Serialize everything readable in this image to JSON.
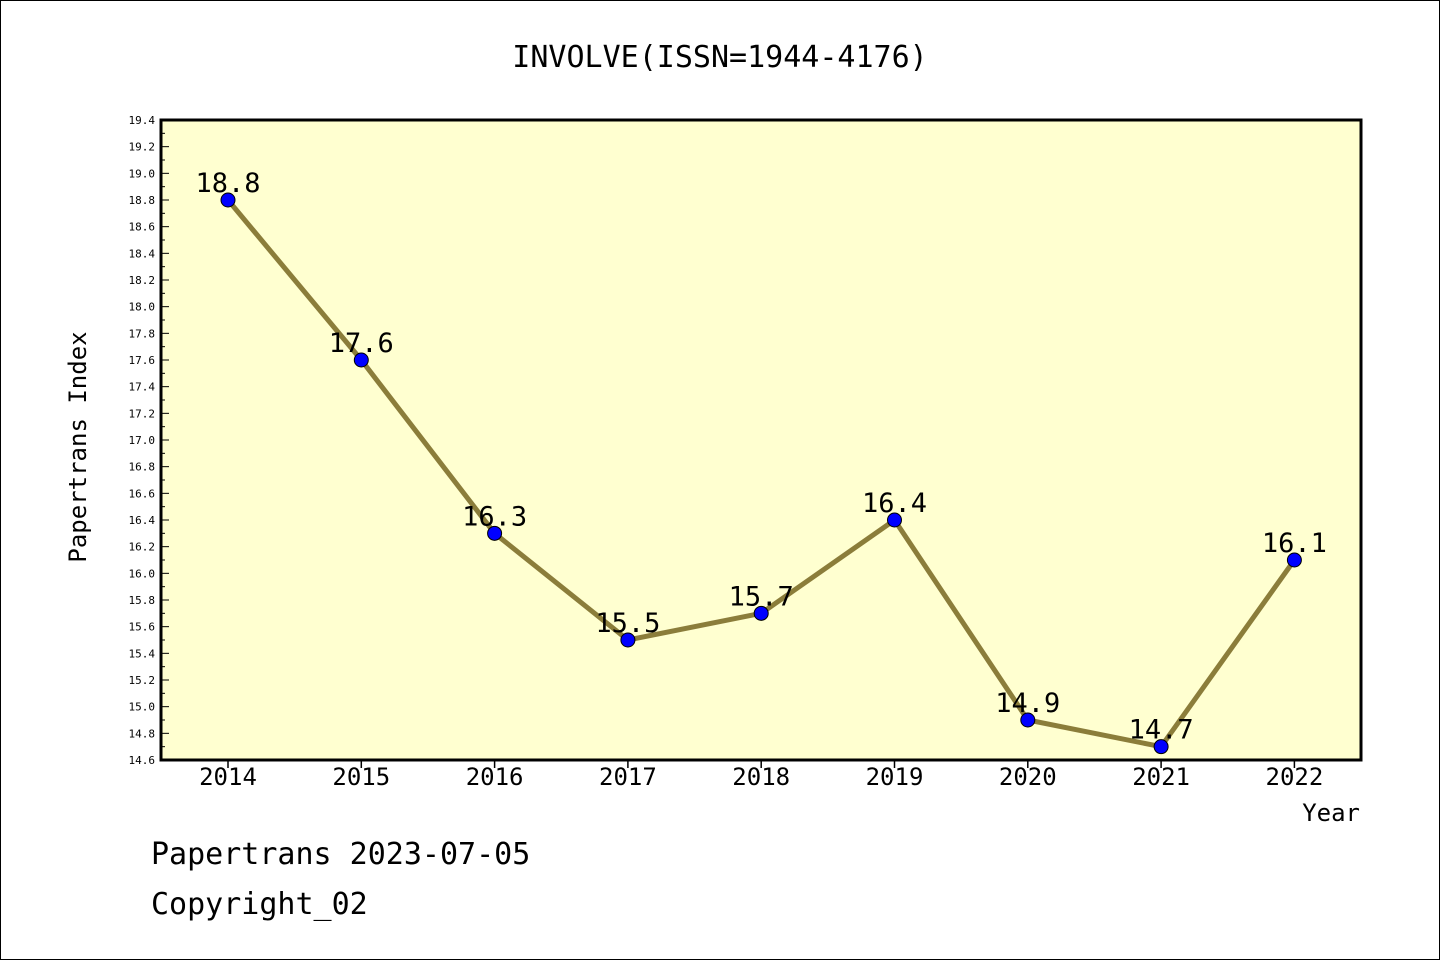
{
  "chart_data": {
    "type": "line",
    "title": "INVOLVE(ISSN=1944-4176)",
    "xlabel": "Year",
    "ylabel": "Papertrans Index",
    "categories": [
      "2014",
      "2015",
      "2016",
      "2017",
      "2018",
      "2019",
      "2020",
      "2021",
      "2022"
    ],
    "series": [
      {
        "values": [
          18.8,
          17.6,
          16.3,
          15.5,
          15.7,
          16.4,
          14.9,
          14.7,
          16.1
        ],
        "labels": [
          "18.8",
          "17.6",
          "16.3",
          "15.5",
          "15.7",
          "16.4",
          "14.9",
          "14.7",
          "16.1"
        ]
      }
    ],
    "ylim": [
      14.6,
      19.4
    ],
    "ytick_step": 0.2,
    "yticks": [
      "14.6",
      "14.8",
      "15.0",
      "15.2",
      "15.4",
      "15.6",
      "15.8",
      "16.0",
      "16.2",
      "16.4",
      "16.6",
      "16.8",
      "17.0",
      "17.2",
      "17.4",
      "17.6",
      "17.8",
      "18.0",
      "18.2",
      "18.4",
      "18.6",
      "18.8",
      "19.0",
      "19.2",
      "19.4"
    ],
    "grid": false,
    "colors": {
      "plot_background": "#FFFFD0",
      "line": "#8B7D3A",
      "marker": "#0000FF"
    }
  },
  "footer": {
    "date_line": "Papertrans 2023-07-05",
    "copyright": "Copyright_02"
  }
}
